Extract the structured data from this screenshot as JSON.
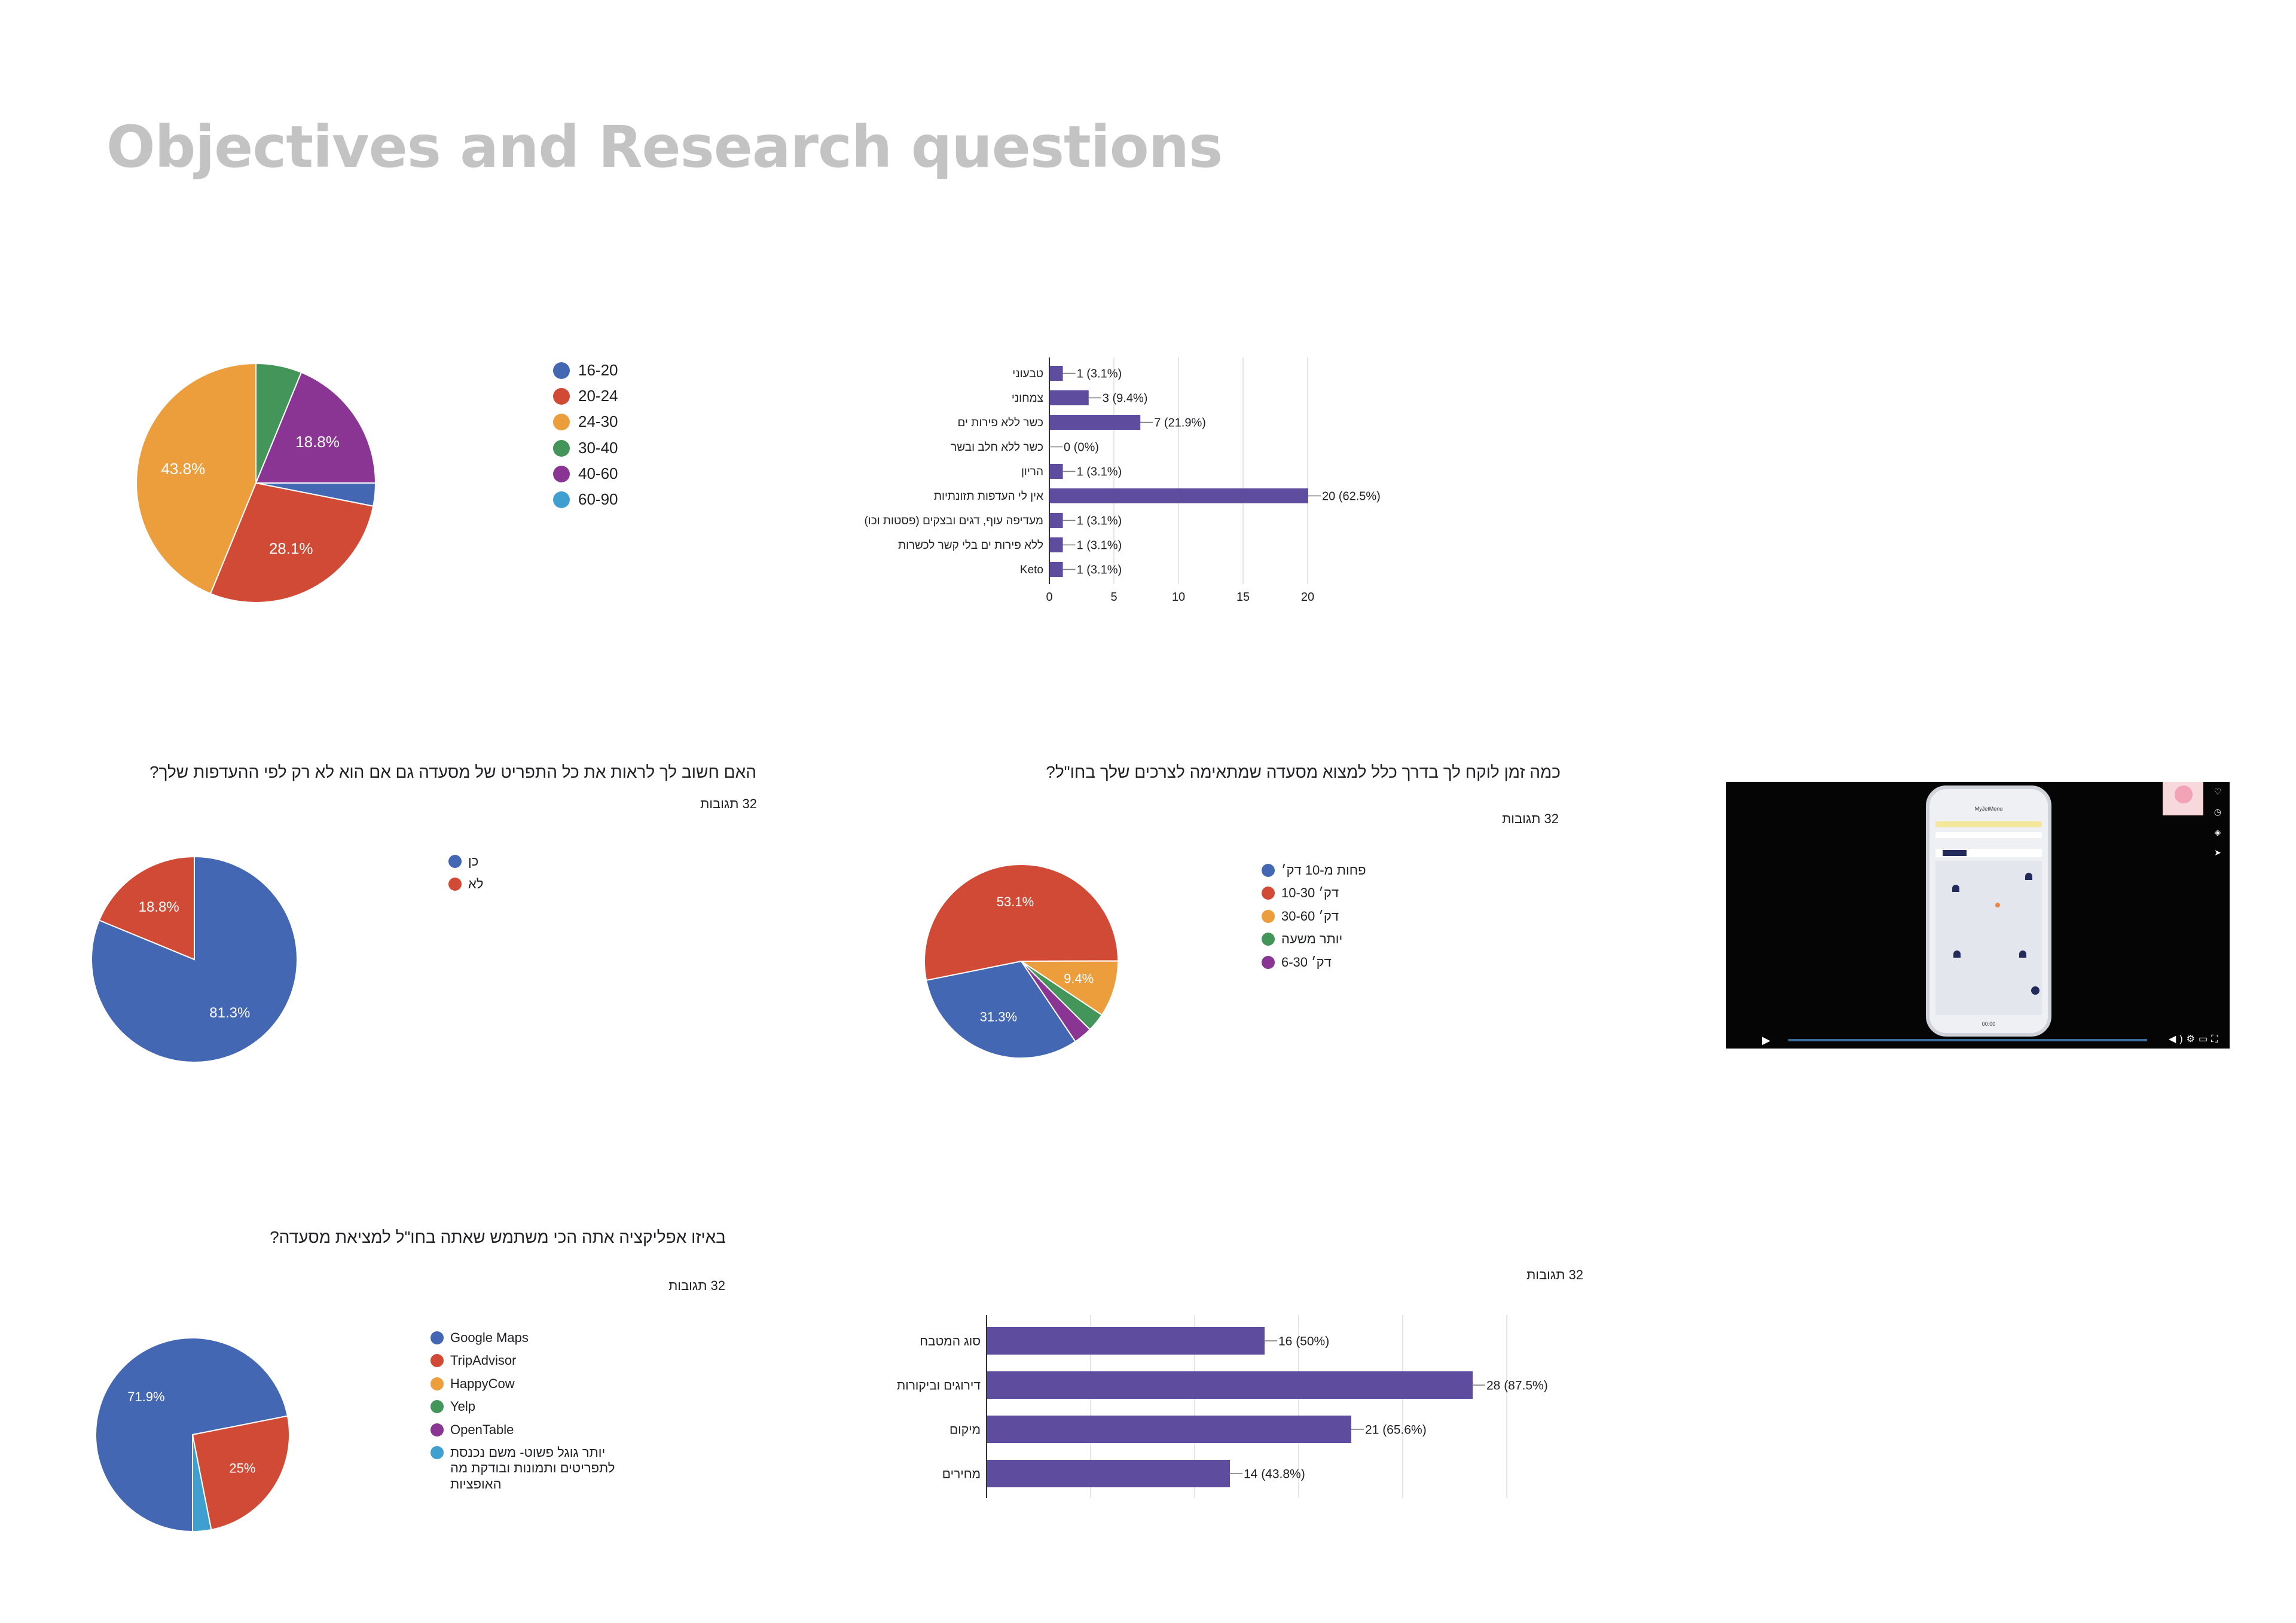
{
  "page": {
    "title": "Objectives and Research questions"
  },
  "chart_data": [
    {
      "id": "age",
      "type": "pie",
      "title": "",
      "legend": [
        {
          "label": "16-20",
          "color": "#4467b3"
        },
        {
          "label": "20-24",
          "color": "#d14a35"
        },
        {
          "label": "24-30",
          "color": "#ec9e3d"
        },
        {
          "label": "30-40",
          "color": "#43955a"
        },
        {
          "label": "40-60",
          "color": "#8a3593"
        },
        {
          "label": "60-90",
          "color": "#3f9fcf"
        }
      ],
      "slices": [
        {
          "label": "16-20",
          "value": 3.1,
          "color": "#4467b3",
          "text": ""
        },
        {
          "label": "20-24",
          "value": 28.1,
          "color": "#d14a35",
          "text": "28.1%"
        },
        {
          "label": "24-30",
          "value": 43.8,
          "color": "#ec9e3d",
          "text": "43.8%"
        },
        {
          "label": "30-40",
          "value": 6.2,
          "color": "#43955a",
          "text": ""
        },
        {
          "label": "40-60",
          "value": 18.8,
          "color": "#8a3593",
          "text": "18.8%"
        }
      ]
    },
    {
      "id": "diet",
      "type": "bar",
      "orientation": "horizontal",
      "title": "",
      "color": "#5e4d9f",
      "categories": [
        "טבעוני",
        "צמחוני",
        "כשר ללא פירות ים",
        "כשר ללא חלב ובשר",
        "הריון",
        "אין לי העדפות תזונתיות",
        "מעדיפה עוף, דגים ובצקים (פסטות וכו)",
        "ללא פירות ים בלי קשר לכשרות",
        "Keto"
      ],
      "values": [
        1,
        3,
        7,
        0,
        1,
        20,
        1,
        1,
        1
      ],
      "labels": [
        "1 (3.1%)",
        "3 (9.4%)",
        "7 (21.9%)",
        "0 (0%)",
        "1 (3.1%)",
        "20 (62.5%)",
        "1 (3.1%)",
        "1 (3.1%)",
        "1 (3.1%)"
      ],
      "xlim": [
        0,
        20
      ],
      "xticks": [
        "0",
        "5",
        "10",
        "15",
        "20"
      ]
    },
    {
      "id": "menu",
      "type": "pie",
      "title": "האם חשוב לך לראות את כל התפריט של מסעדה גם אם הוא לא רק לפי ההעדפות שלך?",
      "count": "32 תגובות",
      "legend": [
        {
          "label": "כן",
          "color": "#4467b3"
        },
        {
          "label": "לא",
          "color": "#d14a35"
        }
      ],
      "slices": [
        {
          "label": "כן",
          "value": 81.3,
          "color": "#4467b3",
          "text": "81.3%"
        },
        {
          "label": "לא",
          "value": 18.8,
          "color": "#d14a35",
          "text": "18.8%"
        }
      ]
    },
    {
      "id": "time",
      "type": "pie",
      "title": "כמה זמן לוקח לך בדרך כלל למצוא מסעדה שמתאימה לצרכים שלך בחו\"ל?",
      "count": "32 תגובות",
      "legend": [
        {
          "label": "פחות מ-10 דק׳",
          "color": "#4467b3"
        },
        {
          "label": "10-30 דק׳",
          "color": "#d14a35"
        },
        {
          "label": "30-60 דק׳",
          "color": "#ec9e3d"
        },
        {
          "label": "יותר משעה",
          "color": "#43955a"
        },
        {
          "label": "6-30 דק׳",
          "color": "#8a3593"
        }
      ],
      "slices": [
        {
          "label": "פחות מ-10 דק׳",
          "value": 31.3,
          "color": "#4467b3",
          "text": "31.3%"
        },
        {
          "label": "10-30 דק׳",
          "value": 53.1,
          "color": "#d14a35",
          "text": "53.1%"
        },
        {
          "label": "30-60 דק׳",
          "value": 9.4,
          "color": "#ec9e3d",
          "text": "9.4%"
        },
        {
          "label": "יותר משעה",
          "value": 3.1,
          "color": "#43955a",
          "text": ""
        },
        {
          "label": "6-30 דק׳",
          "value": 3.1,
          "color": "#8a3593",
          "text": ""
        }
      ]
    },
    {
      "id": "app",
      "type": "pie",
      "title": "באיזו אפליקציה אתה הכי משתמש שאתה בחו\"ל למציאת מסעדה?",
      "count": "32 תגובות",
      "legend": [
        {
          "label": "Google Maps",
          "color": "#4467b3"
        },
        {
          "label": "TripAdvisor",
          "color": "#d14a35"
        },
        {
          "label": "HappyCow",
          "color": "#ec9e3d"
        },
        {
          "label": "Yelp",
          "color": "#43955a"
        },
        {
          "label": "OpenTable",
          "color": "#8a3593"
        },
        {
          "label": "יותר גוגל פשוט- משם נכנסת לתפריטים ותמונות ובודקת מה האופציות",
          "color": "#3f9fcf"
        }
      ],
      "slices": [
        {
          "label": "Google Maps",
          "value": 71.9,
          "color": "#4467b3",
          "text": "71.9%"
        },
        {
          "label": "TripAdvisor",
          "value": 25,
          "color": "#d14a35",
          "text": "25%"
        },
        {
          "label": "יותר גוגל פשוט",
          "value": 3.1,
          "color": "#3f9fcf",
          "text": ""
        }
      ]
    },
    {
      "id": "factors",
      "type": "bar",
      "orientation": "horizontal",
      "title": "",
      "count": "32 תגובות",
      "color": "#5e4d9f",
      "categories": [
        "סוג המטבח",
        "דירוגים וביקורות",
        "מיקום",
        "מחירים"
      ],
      "values": [
        16,
        28,
        21,
        14
      ],
      "labels": [
        "16 (50%)",
        "28 (87.5%)",
        "21 (65.6%)",
        "14 (43.8%)"
      ],
      "xlim": [
        0,
        30
      ]
    }
  ],
  "video": {
    "app_name": "MyJetMenu",
    "time": "00:00"
  }
}
